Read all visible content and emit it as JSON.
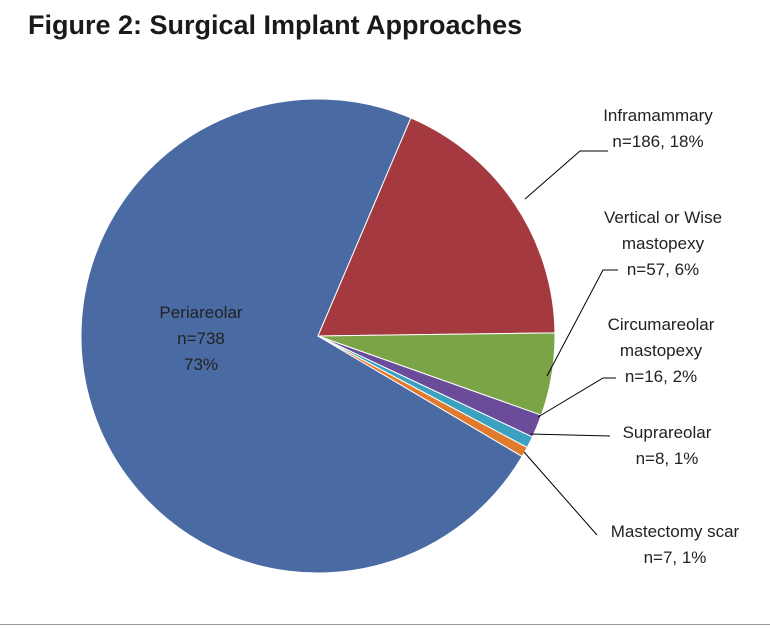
{
  "chart_data": {
    "type": "pie",
    "title": "Figure 2: Surgical Implant Approaches",
    "slices": [
      {
        "name": "Periareolar",
        "count_label": "n=738",
        "pct_label": "73%",
        "value": 738,
        "color": "#4a6aa3"
      },
      {
        "name": "Inframammary",
        "label_line2": "n=186, 18%",
        "value": 186,
        "color": "#a43a40"
      },
      {
        "name": "Vertical or Wise",
        "name_line2": "mastopexy",
        "label_line3": "n=57, 6%",
        "value": 57,
        "color": "#7ba447"
      },
      {
        "name": "Circumareolar",
        "name_line2": "mastopexy",
        "label_line3": "n=16, 2%",
        "value": 16,
        "color": "#6b4c9a"
      },
      {
        "name": "Suprareolar",
        "label_line2": "n=8, 1%",
        "value": 8,
        "color": "#3aa2c0"
      },
      {
        "name": "Mastectomy scar",
        "label_line2": "n=7, 1%",
        "value": 7,
        "color": "#e07b2e"
      }
    ]
  }
}
